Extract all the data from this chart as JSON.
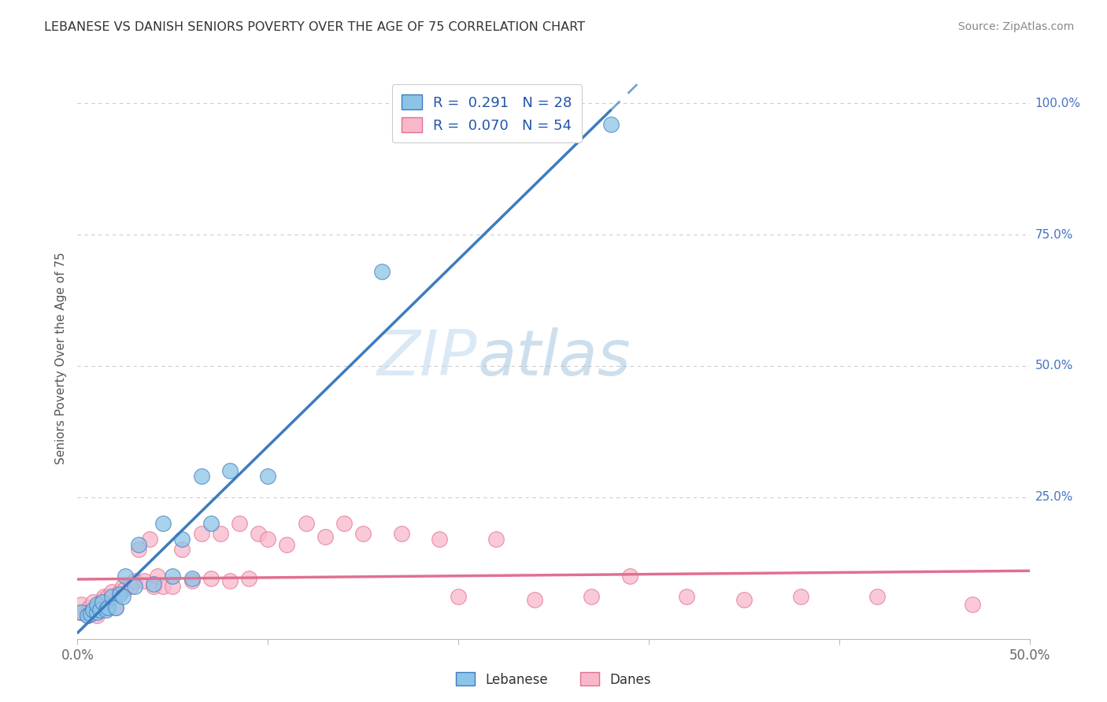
{
  "title": "LEBANESE VS DANISH SENIORS POVERTY OVER THE AGE OF 75 CORRELATION CHART",
  "source": "Source: ZipAtlas.com",
  "ylabel": "Seniors Poverty Over the Age of 75",
  "xlim": [
    0.0,
    0.5
  ],
  "ylim": [
    -0.02,
    1.05
  ],
  "lebanese_color": "#8cc4e8",
  "danish_color": "#f9b8ca",
  "lebanese_line_color": "#3d7bbf",
  "danish_line_color": "#e07090",
  "legend_R_lebanese": "0.291",
  "legend_N_lebanese": "28",
  "legend_R_danish": "0.070",
  "legend_N_danish": "54",
  "watermark_zip": "ZIP",
  "watermark_atlas": "atlas",
  "background_color": "#ffffff",
  "grid_color": "#cccccc",
  "lebanese_x": [
    0.002,
    0.005,
    0.007,
    0.008,
    0.01,
    0.01,
    0.012,
    0.013,
    0.015,
    0.016,
    0.018,
    0.02,
    0.022,
    0.024,
    0.025,
    0.03,
    0.032,
    0.04,
    0.045,
    0.05,
    0.055,
    0.06,
    0.065,
    0.07,
    0.08,
    0.1,
    0.16,
    0.28
  ],
  "lebanese_y": [
    0.03,
    0.025,
    0.028,
    0.035,
    0.03,
    0.045,
    0.035,
    0.05,
    0.035,
    0.04,
    0.06,
    0.04,
    0.065,
    0.06,
    0.1,
    0.08,
    0.16,
    0.085,
    0.2,
    0.1,
    0.17,
    0.095,
    0.29,
    0.2,
    0.3,
    0.29,
    0.68,
    0.96
  ],
  "danish_x": [
    0.001,
    0.002,
    0.005,
    0.006,
    0.007,
    0.008,
    0.01,
    0.01,
    0.012,
    0.013,
    0.014,
    0.015,
    0.016,
    0.018,
    0.02,
    0.022,
    0.024,
    0.025,
    0.028,
    0.03,
    0.032,
    0.035,
    0.038,
    0.04,
    0.042,
    0.045,
    0.05,
    0.055,
    0.06,
    0.065,
    0.07,
    0.075,
    0.08,
    0.085,
    0.09,
    0.095,
    0.1,
    0.11,
    0.12,
    0.13,
    0.14,
    0.15,
    0.17,
    0.19,
    0.2,
    0.22,
    0.24,
    0.27,
    0.29,
    0.32,
    0.35,
    0.38,
    0.42,
    0.47
  ],
  "danish_y": [
    0.03,
    0.045,
    0.025,
    0.04,
    0.035,
    0.05,
    0.025,
    0.04,
    0.045,
    0.055,
    0.06,
    0.04,
    0.06,
    0.07,
    0.04,
    0.07,
    0.08,
    0.075,
    0.08,
    0.09,
    0.15,
    0.09,
    0.17,
    0.08,
    0.1,
    0.08,
    0.08,
    0.15,
    0.09,
    0.18,
    0.095,
    0.18,
    0.09,
    0.2,
    0.095,
    0.18,
    0.17,
    0.16,
    0.2,
    0.175,
    0.2,
    0.18,
    0.18,
    0.17,
    0.06,
    0.17,
    0.055,
    0.06,
    0.1,
    0.06,
    0.055,
    0.06,
    0.06,
    0.045
  ]
}
